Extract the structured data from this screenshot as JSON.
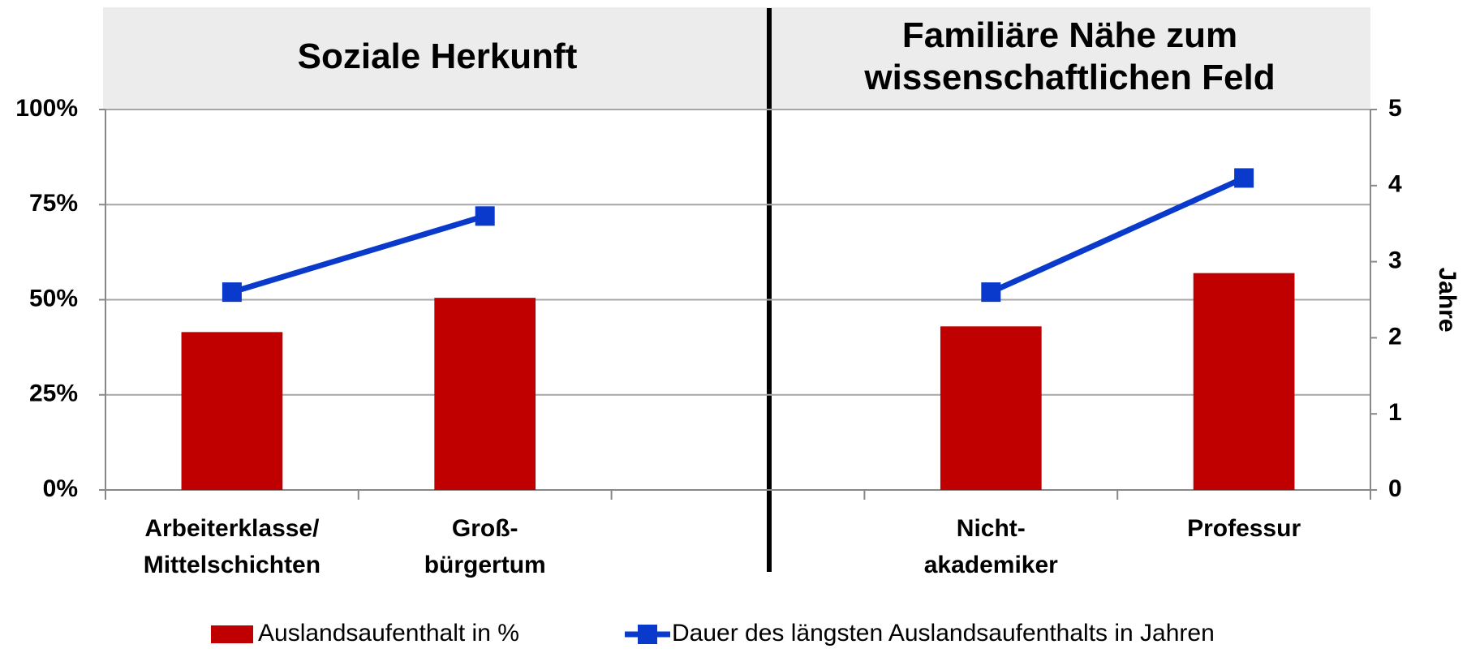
{
  "chart_data": {
    "type": "bar_line",
    "group_labels": [
      [
        "Soziale Herkunft"
      ],
      [
        "Familiäre Nähe zum",
        "wissenschaftlichen Feld"
      ]
    ],
    "categories": [
      [
        "Arbeiterklasse/",
        "Mittelschichten"
      ],
      [
        "Groß-",
        "bürgertum"
      ],
      null,
      [
        "Nicht-",
        "akademiker"
      ],
      [
        "Professur"
      ]
    ],
    "series": [
      {
        "name": "Auslandsaufenthalt in %",
        "type": "bar",
        "color": "#c00000",
        "values": [
          41.5,
          50.5,
          null,
          43,
          57
        ]
      },
      {
        "name": "Dauer des längsten Auslandsaufenthalts in Jahren",
        "type": "line",
        "color": "#0a3acc",
        "axis": "y2",
        "values": [
          2.6,
          3.6,
          null,
          2.6,
          4.1
        ]
      }
    ],
    "ylim": [
      0,
      100
    ],
    "yticks": [
      {
        "value": 0,
        "label": "0%"
      },
      {
        "value": 25,
        "label": "25%"
      },
      {
        "value": 50,
        "label": "50%"
      },
      {
        "value": 75,
        "label": "75%"
      },
      {
        "value": 100,
        "label": "100%"
      }
    ],
    "y2lim": [
      0,
      5
    ],
    "y2ticks": [
      0,
      1,
      2,
      3,
      4,
      5
    ],
    "y2label": "Jahre",
    "grid": true,
    "legend": "bottom"
  }
}
